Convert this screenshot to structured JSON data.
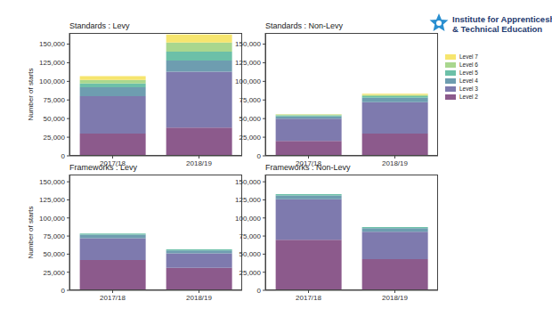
{
  "header": {
    "text": [
      "Institute for Apprenticeships",
      "& Technical Education"
    ]
  },
  "chart_data": [
    {
      "type": "bar",
      "title": "Standards : Levy",
      "y_label": "Number of starts",
      "stacked": true,
      "categories": [
        "2017/18",
        "2018/19"
      ],
      "series": [
        {
          "name": "Level 2",
          "color": "#8c5a8c",
          "values": [
            30000,
            38000
          ]
        },
        {
          "name": "Level 3",
          "color": "#7e7aae",
          "values": [
            50000,
            75000
          ]
        },
        {
          "name": "Level 4",
          "color": "#6e9db0",
          "values": [
            12000,
            15000
          ]
        },
        {
          "name": "Level 5",
          "color": "#6cc0a8",
          "values": [
            5000,
            12000
          ]
        },
        {
          "name": "Level 6",
          "color": "#a9d78e",
          "values": [
            5000,
            12000
          ]
        },
        {
          "name": "Level 7",
          "color": "#f6e56e",
          "values": [
            5000,
            11000
          ]
        }
      ],
      "ylim": [
        0,
        165000
      ],
      "yticks": [
        0,
        {
          "value": 25000,
          "label": "25,000"
        },
        {
          "value": 50000,
          "label": "50,000"
        },
        {
          "value": 75000,
          "label": "75,000"
        },
        {
          "value": 100000,
          "label": "100,000"
        },
        {
          "value": 125000,
          "label": "125,000"
        },
        {
          "value": 150000,
          "label": "150,000"
        }
      ]
    },
    {
      "type": "bar",
      "title": "Standards : Non-Levy",
      "stacked": true,
      "legend": "right",
      "categories": [
        "2017/18",
        "2018/19"
      ],
      "series": [
        {
          "name": "Level 2",
          "color": "#8c5a8c",
          "values": [
            20000,
            30000
          ]
        },
        {
          "name": "Level 3",
          "color": "#7e7aae",
          "values": [
            30000,
            42000
          ]
        },
        {
          "name": "Level 4",
          "color": "#6e9db0",
          "values": [
            3000,
            6000
          ]
        },
        {
          "name": "Level 5",
          "color": "#6cc0a8",
          "values": [
            1500,
            2000
          ]
        },
        {
          "name": "Level 6",
          "color": "#a9d78e",
          "values": [
            1000,
            2000
          ]
        },
        {
          "name": "Level 7",
          "color": "#f6e56e",
          "values": [
            500,
            1500
          ]
        }
      ],
      "ylim": [
        0,
        165000
      ],
      "yticks": [
        0,
        {
          "value": 25000,
          "label": "25,000"
        },
        {
          "value": 50000,
          "label": "50,000"
        },
        {
          "value": 75000,
          "label": "75,000"
        },
        {
          "value": 100000,
          "label": "100,000"
        },
        {
          "value": 125000,
          "label": "125,000"
        },
        {
          "value": 150000,
          "label": "150,000"
        }
      ]
    },
    {
      "type": "bar",
      "title": "Frameworks : Levy",
      "y_label": "Number of starts",
      "stacked": true,
      "categories": [
        "2017/18",
        "2018/19"
      ],
      "series": [
        {
          "name": "Level 2",
          "color": "#8c5a8c",
          "values": [
            42000,
            31000
          ]
        },
        {
          "name": "Level 3",
          "color": "#7e7aae",
          "values": [
            30000,
            20000
          ]
        },
        {
          "name": "Level 4",
          "color": "#6e9db0",
          "values": [
            5000,
            4000
          ]
        },
        {
          "name": "Level 5",
          "color": "#6cc0a8",
          "values": [
            1500,
            1500
          ]
        },
        {
          "name": "Level 6",
          "color": "#a9d78e",
          "values": [
            0,
            0
          ]
        },
        {
          "name": "Level 7",
          "color": "#f6e56e",
          "values": [
            0,
            0
          ]
        }
      ],
      "ylim": [
        0,
        160000
      ],
      "yticks": [
        0,
        {
          "value": 25000,
          "label": "25,000"
        },
        {
          "value": 50000,
          "label": "50,000"
        },
        {
          "value": 75000,
          "label": "75,000"
        },
        {
          "value": 100000,
          "label": "100,000"
        },
        {
          "value": 125000,
          "label": "125,000"
        },
        {
          "value": 150000,
          "label": "150,000"
        }
      ]
    },
    {
      "type": "bar",
      "title": "Frameworks : Non-Levy",
      "stacked": true,
      "categories": [
        "2017/18",
        "2018/19"
      ],
      "series": [
        {
          "name": "Level 2",
          "color": "#8c5a8c",
          "values": [
            70000,
            43000
          ]
        },
        {
          "name": "Level 3",
          "color": "#7e7aae",
          "values": [
            56000,
            38000
          ]
        },
        {
          "name": "Level 4",
          "color": "#6e9db0",
          "values": [
            5000,
            5000
          ]
        },
        {
          "name": "Level 5",
          "color": "#6cc0a8",
          "values": [
            2000,
            1500
          ]
        },
        {
          "name": "Level 6",
          "color": "#a9d78e",
          "values": [
            0,
            0
          ]
        },
        {
          "name": "Level 7",
          "color": "#f6e56e",
          "values": [
            0,
            0
          ]
        }
      ],
      "ylim": [
        0,
        160000
      ],
      "yticks": [
        0,
        {
          "value": 25000,
          "label": "25,000"
        },
        {
          "value": 50000,
          "label": "50,000"
        },
        {
          "value": 75000,
          "label": "75,000"
        },
        {
          "value": 100000,
          "label": "100,000"
        },
        {
          "value": 125000,
          "label": "125,000"
        },
        {
          "value": 150000,
          "label": "150,000"
        }
      ]
    }
  ]
}
